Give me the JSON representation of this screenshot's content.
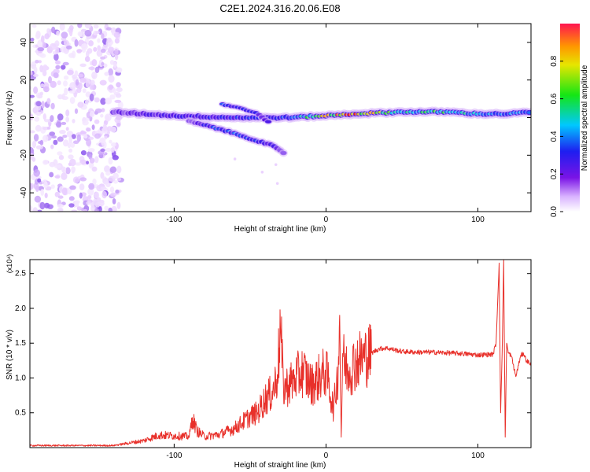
{
  "title": "C2E1.2024.316.20.06.E08",
  "colors": {
    "line": "#e8302a",
    "spectrogram_cmap": [
      "#ffffff",
      "#e6c8ff",
      "#a070f0",
      "#5a14e6",
      "#1e28f0",
      "#1e8cff",
      "#00e6e6",
      "#1ee61e",
      "#c8e600",
      "#ffaa00",
      "#ff1e00"
    ]
  },
  "chart_data": [
    {
      "type": "heatmap",
      "title": "C2E1.2024.316.20.06.E08",
      "xlabel": "Height of straight line (km)",
      "ylabel": "Frequency (Hz)",
      "xlim": [
        -195,
        135
      ],
      "ylim": [
        -50,
        50
      ],
      "xticks": [
        -100,
        0,
        100
      ],
      "xtick_labels": [
        "-100",
        "0",
        "100"
      ],
      "yticks": [
        -40,
        -20,
        0,
        20,
        40
      ],
      "ytick_labels": [
        "-40",
        "-20",
        "0",
        "20",
        "40"
      ],
      "colorbar": {
        "label": "Normalized spectral amplitude",
        "range": [
          0,
          1
        ],
        "ticks": [
          0,
          0.2,
          0.4,
          0.6,
          0.8
        ],
        "tick_labels": [
          "0.0",
          "0.2",
          "0.4",
          "0.6",
          "0.8"
        ]
      },
      "features": [
        {
          "feature": "noise region",
          "x_range": [
            -195,
            -135
          ],
          "freq_range": [
            -50,
            50
          ],
          "amplitude": 0.1
        },
        {
          "feature": "main band",
          "x": [
            -140,
            -100,
            -60,
            -40,
            -25,
            0,
            20,
            50,
            80,
            100,
            120,
            135
          ],
          "freq": [
            3,
            1,
            0,
            0,
            0,
            1,
            2,
            3,
            3,
            2,
            2,
            3
          ],
          "amplitude": [
            0.25,
            0.35,
            0.4,
            0.4,
            0.45,
            0.85,
            0.95,
            0.6,
            0.7,
            0.55,
            0.5,
            0.55
          ]
        },
        {
          "feature": "descending branch",
          "x": [
            -90,
            -70,
            -50,
            -35,
            -28
          ],
          "freq": [
            -2,
            -6,
            -11,
            -15,
            -19
          ],
          "amplitude": [
            0.25,
            0.45,
            0.45,
            0.35,
            0.2
          ]
        },
        {
          "feature": "upper branch",
          "x": [
            -68,
            -55,
            -45,
            -38
          ],
          "freq": [
            7,
            5,
            2,
            -2
          ],
          "amplitude": [
            0.45,
            0.4,
            0.35,
            0.3
          ]
        }
      ]
    },
    {
      "type": "line",
      "xlabel": "Height of straight line (km)",
      "ylabel": "SNR (10 * v/v)",
      "y_multiplier": "(x10⁴)",
      "xlim": [
        -195,
        135
      ],
      "ylim": [
        0,
        27000
      ],
      "xticks": [
        -100,
        0,
        100
      ],
      "xtick_labels": [
        "-100",
        "0",
        "100"
      ],
      "yticks": [
        5000,
        10000,
        15000,
        20000,
        25000
      ],
      "ytick_labels": [
        "0.5",
        "1.0",
        "1.5",
        "2.0",
        "2.5"
      ],
      "series": [
        {
          "x": [
            -195,
            -160,
            -140,
            -120,
            -110,
            -100,
            -90,
            -88,
            -85,
            -80,
            -70,
            -60,
            -50,
            -45,
            -40,
            -35,
            -32,
            -30,
            -28,
            -25,
            -22,
            -20,
            -15,
            -10,
            -5,
            0,
            5,
            8,
            9,
            10,
            11,
            12,
            15,
            20,
            25,
            30,
            35,
            40,
            50,
            60,
            70,
            80,
            90,
            100,
            110,
            112,
            114,
            115,
            116,
            117,
            118,
            119,
            120,
            122,
            125,
            128,
            130,
            132,
            135
          ],
          "y": [
            300,
            300,
            300,
            1000,
            1800,
            1700,
            1600,
            4300,
            2400,
            1600,
            1900,
            2800,
            4500,
            5000,
            7000,
            8000,
            10500,
            17200,
            8500,
            9000,
            9500,
            10000,
            11000,
            9000,
            10000,
            11000,
            5500,
            11000,
            19000,
            1500,
            13500,
            12000,
            11000,
            12500,
            13000,
            13600,
            14200,
            14300,
            13800,
            13700,
            13700,
            13600,
            13500,
            13300,
            13400,
            15000,
            26500,
            5000,
            13500,
            27000,
            1500,
            15000,
            13600,
            13200,
            10200,
            13000,
            13600,
            12500,
            12000
          ]
        }
      ]
    }
  ]
}
